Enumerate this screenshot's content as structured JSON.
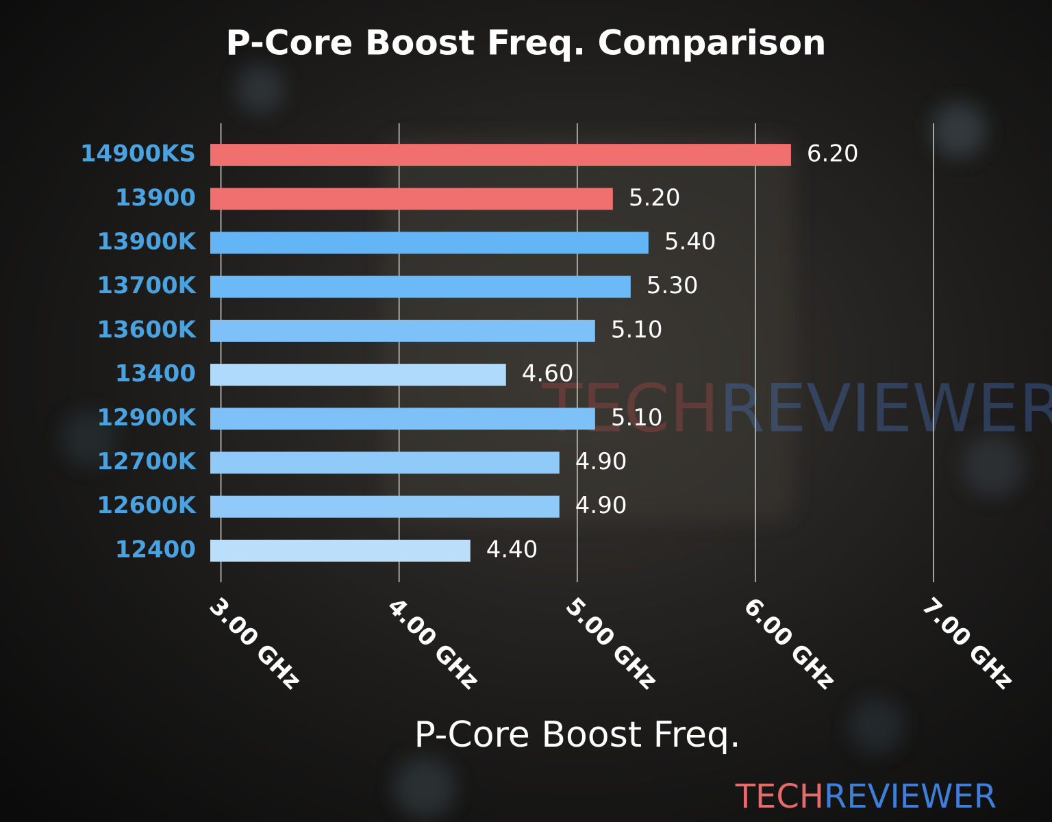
{
  "chart_data": {
    "type": "bar",
    "orientation": "horizontal",
    "title": "P-Core Boost Freq. Comparison",
    "xlabel": "P-Core Boost Freq.",
    "categories": [
      "14900KS",
      "13900",
      "13900K",
      "13700K",
      "13600K",
      "13400",
      "12900K",
      "12700K",
      "12600K",
      "12400"
    ],
    "values": [
      6.2,
      5.2,
      5.4,
      5.3,
      5.1,
      4.6,
      5.1,
      4.9,
      4.9,
      4.4
    ],
    "value_labels": [
      "6.20",
      "5.20",
      "5.40",
      "5.30",
      "5.10",
      "4.60",
      "5.10",
      "4.90",
      "4.90",
      "4.40"
    ],
    "colors": [
      "#f07070",
      "#f07070",
      "#64b5f6",
      "#6cb9f7",
      "#7ec1f8",
      "#b0dafb",
      "#7ec1f8",
      "#90caf9",
      "#90caf9",
      "#bbdefb"
    ],
    "xlim": [
      2.94,
      7.0
    ],
    "xticks": [
      {
        "value": 3,
        "label": "3.00 GHz"
      },
      {
        "value": 4,
        "label": "4.00 GHz"
      },
      {
        "value": 5,
        "label": "5.00 GHz"
      },
      {
        "value": 6,
        "label": "6.00 GHz"
      },
      {
        "value": 7,
        "label": "7.00 GHz"
      }
    ],
    "grid": true,
    "brand": [
      "TECH",
      "REVIEWER"
    ]
  }
}
